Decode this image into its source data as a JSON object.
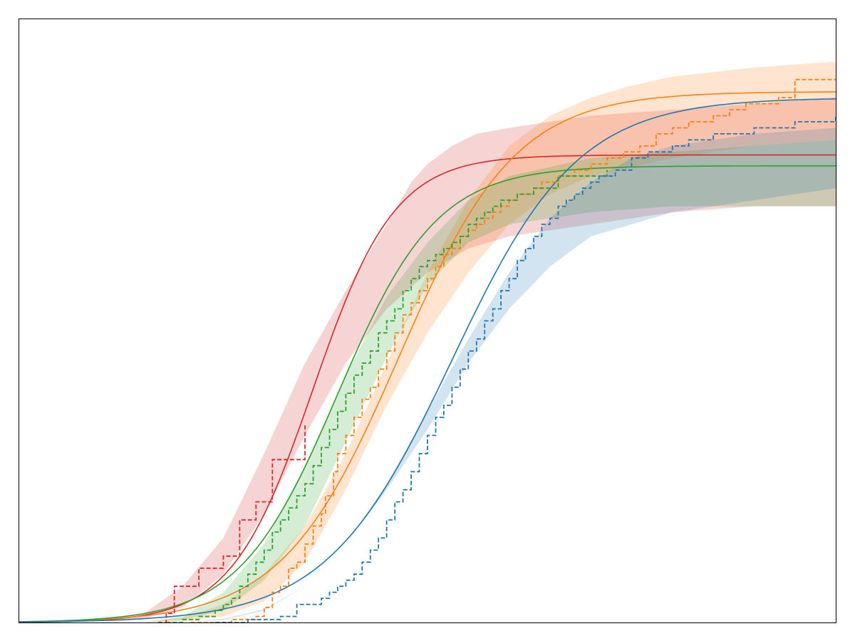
{
  "chart_data": {
    "type": "line",
    "title": "",
    "xlabel": "",
    "ylabel": "",
    "xlim": [
      0,
      100
    ],
    "ylim": [
      0,
      1
    ],
    "grid": false,
    "legend": "none",
    "axes_visible": false,
    "series": [
      {
        "color": "#d62728",
        "fit": {
          "L": 0.775,
          "x0": 36.0,
          "k": 0.2
        },
        "band": [
          [
            10,
            0.0
          ],
          [
            15,
            0.012
          ],
          [
            20,
            0.06
          ],
          [
            25,
            0.14
          ],
          [
            30,
            0.28
          ],
          [
            35,
            0.43
          ],
          [
            40,
            0.55
          ],
          [
            45,
            0.66
          ],
          [
            48,
            0.73
          ],
          [
            50,
            0.76
          ],
          [
            53,
            0.79
          ],
          [
            56,
            0.81
          ],
          [
            60,
            0.82
          ],
          [
            65,
            0.83
          ],
          [
            70,
            0.84
          ],
          [
            80,
            0.85
          ],
          [
            90,
            0.86
          ],
          [
            100,
            0.87
          ],
          [
            100,
            0.69
          ],
          [
            90,
            0.69
          ],
          [
            80,
            0.68
          ],
          [
            70,
            0.66
          ],
          [
            60,
            0.64
          ],
          [
            55,
            0.62
          ],
          [
            50,
            0.58
          ],
          [
            45,
            0.52
          ],
          [
            40,
            0.43
          ],
          [
            35,
            0.31
          ],
          [
            30,
            0.18
          ],
          [
            25,
            0.08
          ],
          [
            20,
            0.025
          ],
          [
            15,
            0.005
          ],
          [
            10,
            0.0
          ]
        ],
        "steps": [
          [
            17,
            0.0
          ],
          [
            18,
            0.015
          ],
          [
            19,
            0.015
          ],
          [
            19,
            0.06
          ],
          [
            22,
            0.06
          ],
          [
            22,
            0.09
          ],
          [
            25,
            0.09
          ],
          [
            25,
            0.11
          ],
          [
            27,
            0.11
          ],
          [
            27,
            0.17
          ],
          [
            29,
            0.17
          ],
          [
            29,
            0.2
          ],
          [
            31,
            0.2
          ],
          [
            31,
            0.27
          ],
          [
            35,
            0.27
          ],
          [
            35,
            0.33
          ]
        ]
      },
      {
        "color": "#ff7f0e",
        "fit": {
          "L": 0.88,
          "x0": 46.5,
          "k": 0.14
        },
        "band": [
          [
            15,
            0.0
          ],
          [
            20,
            0.008
          ],
          [
            25,
            0.03
          ],
          [
            30,
            0.08
          ],
          [
            35,
            0.16
          ],
          [
            40,
            0.28
          ],
          [
            45,
            0.43
          ],
          [
            50,
            0.58
          ],
          [
            55,
            0.7
          ],
          [
            60,
            0.79
          ],
          [
            65,
            0.84
          ],
          [
            70,
            0.87
          ],
          [
            75,
            0.89
          ],
          [
            80,
            0.905
          ],
          [
            90,
            0.92
          ],
          [
            100,
            0.93
          ],
          [
            100,
            0.8
          ],
          [
            90,
            0.79
          ],
          [
            80,
            0.77
          ],
          [
            70,
            0.74
          ],
          [
            65,
            0.71
          ],
          [
            60,
            0.66
          ],
          [
            55,
            0.58
          ],
          [
            50,
            0.48
          ],
          [
            45,
            0.36
          ],
          [
            40,
            0.22
          ],
          [
            35,
            0.1
          ],
          [
            30,
            0.035
          ],
          [
            25,
            0.01
          ],
          [
            20,
            0.002
          ],
          [
            15,
            0.0
          ]
        ],
        "steps": [
          [
            21,
            0.0
          ],
          [
            26,
            0.0
          ],
          [
            26,
            0.005
          ],
          [
            29,
            0.01
          ],
          [
            30,
            0.01
          ],
          [
            30,
            0.025
          ],
          [
            31,
            0.05
          ],
          [
            32,
            0.06
          ],
          [
            33,
            0.09
          ],
          [
            34,
            0.1
          ],
          [
            35,
            0.13
          ],
          [
            36,
            0.16
          ],
          [
            37,
            0.18
          ],
          [
            37.5,
            0.21
          ],
          [
            38.5,
            0.25
          ],
          [
            39,
            0.28
          ],
          [
            40,
            0.31
          ],
          [
            41,
            0.34
          ],
          [
            42,
            0.37
          ],
          [
            43,
            0.39
          ],
          [
            44,
            0.42
          ],
          [
            45,
            0.45
          ],
          [
            46,
            0.48
          ],
          [
            47,
            0.51
          ],
          [
            48,
            0.53
          ],
          [
            49,
            0.55
          ],
          [
            50,
            0.57
          ],
          [
            51,
            0.59
          ],
          [
            52,
            0.61
          ],
          [
            53,
            0.62
          ],
          [
            54,
            0.64
          ],
          [
            55,
            0.65
          ],
          [
            56,
            0.66
          ],
          [
            57,
            0.67
          ],
          [
            58,
            0.68
          ],
          [
            59,
            0.69
          ],
          [
            60,
            0.7
          ],
          [
            61,
            0.71
          ],
          [
            62,
            0.71
          ],
          [
            63,
            0.72
          ],
          [
            64,
            0.73
          ],
          [
            66,
            0.74
          ],
          [
            68,
            0.75
          ],
          [
            70,
            0.76
          ],
          [
            72,
            0.77
          ],
          [
            74,
            0.78
          ],
          [
            76,
            0.79
          ],
          [
            78,
            0.81
          ],
          [
            80,
            0.82
          ],
          [
            82,
            0.82
          ],
          [
            82,
            0.83
          ],
          [
            85,
            0.84
          ],
          [
            87,
            0.85
          ],
          [
            89,
            0.86
          ],
          [
            93,
            0.86
          ],
          [
            93,
            0.87
          ],
          [
            95,
            0.87
          ],
          [
            95,
            0.9
          ],
          [
            100,
            0.9
          ]
        ]
      },
      {
        "color": "#2ca02c",
        "fit": {
          "L": 0.757,
          "x0": 39.0,
          "k": 0.165
        },
        "band": [
          [
            15,
            0.0
          ],
          [
            20,
            0.01
          ],
          [
            25,
            0.05
          ],
          [
            30,
            0.13
          ],
          [
            35,
            0.26
          ],
          [
            40,
            0.41
          ],
          [
            45,
            0.54
          ],
          [
            50,
            0.63
          ],
          [
            55,
            0.7
          ],
          [
            60,
            0.74
          ],
          [
            70,
            0.77
          ],
          [
            80,
            0.78
          ],
          [
            90,
            0.79
          ],
          [
            100,
            0.8
          ],
          [
            100,
            0.69
          ],
          [
            90,
            0.69
          ],
          [
            80,
            0.69
          ],
          [
            70,
            0.68
          ],
          [
            60,
            0.66
          ],
          [
            55,
            0.63
          ],
          [
            50,
            0.56
          ],
          [
            45,
            0.44
          ],
          [
            40,
            0.3
          ],
          [
            35,
            0.16
          ],
          [
            30,
            0.07
          ],
          [
            25,
            0.02
          ],
          [
            20,
            0.004
          ],
          [
            15,
            0.0
          ]
        ],
        "steps": [
          [
            18,
            0.0
          ],
          [
            20,
            0.005
          ],
          [
            22,
            0.01
          ],
          [
            24,
            0.02
          ],
          [
            25,
            0.03
          ],
          [
            26,
            0.04
          ],
          [
            27,
            0.06
          ],
          [
            28,
            0.08
          ],
          [
            29,
            0.1
          ],
          [
            30,
            0.12
          ],
          [
            31,
            0.15
          ],
          [
            32,
            0.17
          ],
          [
            33,
            0.19
          ],
          [
            34,
            0.21
          ],
          [
            35,
            0.23
          ],
          [
            36,
            0.26
          ],
          [
            37,
            0.29
          ],
          [
            38,
            0.32
          ],
          [
            39,
            0.35
          ],
          [
            40,
            0.38
          ],
          [
            41,
            0.41
          ],
          [
            42,
            0.43
          ],
          [
            43,
            0.45
          ],
          [
            44,
            0.48
          ],
          [
            45,
            0.5
          ],
          [
            46,
            0.52
          ],
          [
            47,
            0.55
          ],
          [
            48,
            0.57
          ],
          [
            49,
            0.59
          ],
          [
            50,
            0.6
          ],
          [
            51,
            0.61
          ],
          [
            52,
            0.62
          ],
          [
            53,
            0.63
          ],
          [
            54,
            0.64
          ],
          [
            55,
            0.66
          ],
          [
            56,
            0.67
          ],
          [
            57,
            0.68
          ],
          [
            58,
            0.69
          ],
          [
            59,
            0.7
          ],
          [
            60,
            0.7
          ],
          [
            61,
            0.71
          ],
          [
            62,
            0.71
          ],
          [
            63,
            0.72
          ],
          [
            64,
            0.72
          ],
          [
            66,
            0.72
          ],
          [
            66,
            0.74
          ],
          [
            72,
            0.74
          ],
          [
            72,
            0.75
          ]
        ]
      },
      {
        "color": "#1f77b4",
        "fit": {
          "L": 0.87,
          "x0": 53.0,
          "k": 0.13
        },
        "band": [
          [
            20,
            0.0
          ],
          [
            25,
            0.006
          ],
          [
            30,
            0.022
          ],
          [
            35,
            0.06
          ],
          [
            40,
            0.13
          ],
          [
            45,
            0.23
          ],
          [
            50,
            0.35
          ],
          [
            55,
            0.47
          ],
          [
            60,
            0.58
          ],
          [
            65,
            0.67
          ],
          [
            70,
            0.73
          ],
          [
            75,
            0.77
          ],
          [
            80,
            0.79
          ],
          [
            90,
            0.81
          ],
          [
            100,
            0.82
          ],
          [
            100,
            0.72
          ],
          [
            90,
            0.7
          ],
          [
            80,
            0.68
          ],
          [
            75,
            0.66
          ],
          [
            70,
            0.64
          ],
          [
            65,
            0.59
          ],
          [
            60,
            0.52
          ],
          [
            55,
            0.43
          ],
          [
            50,
            0.32
          ],
          [
            45,
            0.22
          ],
          [
            40,
            0.13
          ],
          [
            35,
            0.06
          ],
          [
            30,
            0.02
          ],
          [
            25,
            0.004
          ],
          [
            20,
            0.0
          ]
        ],
        "steps": [
          [
            24,
            0.0
          ],
          [
            28,
            0.0
          ],
          [
            28,
            0.005
          ],
          [
            31,
            0.005
          ],
          [
            32,
            0.01
          ],
          [
            33,
            0.01
          ],
          [
            34,
            0.03
          ],
          [
            36,
            0.03
          ],
          [
            37,
            0.04
          ],
          [
            38,
            0.05
          ],
          [
            39,
            0.06
          ],
          [
            40,
            0.07
          ],
          [
            41,
            0.08
          ],
          [
            42,
            0.1
          ],
          [
            43,
            0.12
          ],
          [
            44,
            0.14
          ],
          [
            45,
            0.17
          ],
          [
            46,
            0.2
          ],
          [
            47,
            0.22
          ],
          [
            48,
            0.25
          ],
          [
            49,
            0.28
          ],
          [
            50,
            0.31
          ],
          [
            51,
            0.34
          ],
          [
            52,
            0.36
          ],
          [
            53,
            0.39
          ],
          [
            54,
            0.42
          ],
          [
            55,
            0.45
          ],
          [
            56,
            0.47
          ],
          [
            57,
            0.5
          ],
          [
            58,
            0.52
          ],
          [
            59,
            0.55
          ],
          [
            60,
            0.57
          ],
          [
            61,
            0.6
          ],
          [
            62,
            0.62
          ],
          [
            63,
            0.64
          ],
          [
            64,
            0.66
          ],
          [
            65,
            0.67
          ],
          [
            66,
            0.69
          ],
          [
            67,
            0.7
          ],
          [
            68,
            0.71
          ],
          [
            69,
            0.72
          ],
          [
            70,
            0.73
          ],
          [
            71,
            0.74
          ],
          [
            73,
            0.75
          ],
          [
            75,
            0.77
          ],
          [
            77,
            0.78
          ],
          [
            80,
            0.79
          ],
          [
            82,
            0.8
          ],
          [
            85,
            0.81
          ],
          [
            90,
            0.82
          ],
          [
            95,
            0.83
          ],
          [
            100,
            0.84
          ]
        ]
      }
    ]
  }
}
